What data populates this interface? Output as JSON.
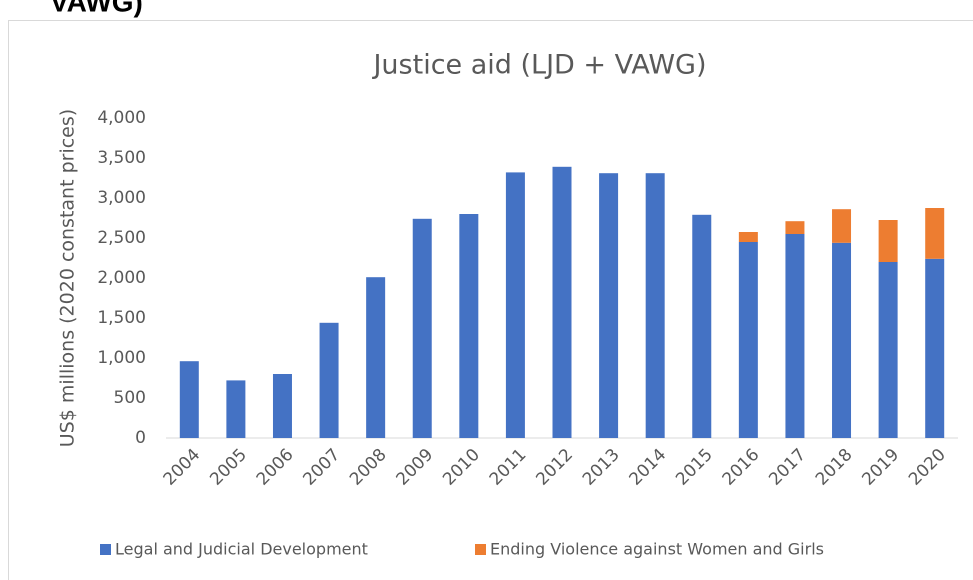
{
  "heading_fragment": "VAWG)",
  "chart_data": {
    "type": "stacked_bar",
    "title": "Justice aid (LJD + VAWG)",
    "y_label": "US$ millions (2020 constant prices)",
    "categories": [
      "2004",
      "2005",
      "2006",
      "2007",
      "2008",
      "2009",
      "2010",
      "2011",
      "2012",
      "2013",
      "2014",
      "2015",
      "2016",
      "2017",
      "2018",
      "2019",
      "2020"
    ],
    "series": [
      {
        "name": "Legal and Judicial Development",
        "color": "#4472c4",
        "values": [
          960,
          720,
          800,
          1440,
          2010,
          2740,
          2800,
          3320,
          3390,
          3310,
          3310,
          2790,
          2450,
          2550,
          2440,
          2200,
          2240
        ]
      },
      {
        "name": "Ending Violence against Women and Girls",
        "color": "#ed7d31",
        "values": [
          null,
          null,
          null,
          null,
          null,
          null,
          null,
          null,
          null,
          null,
          null,
          null,
          125,
          160,
          420,
          525,
          635
        ]
      }
    ],
    "ylim": [
      0,
      4000
    ],
    "yticks": [
      0,
      500,
      {
        "value": 1000,
        "label": "1,000"
      },
      {
        "value": 1500,
        "label": "1,500"
      },
      {
        "value": 2000,
        "label": "2,000"
      },
      {
        "value": 2500,
        "label": "2,500"
      },
      {
        "value": 3000,
        "label": "3,000"
      },
      {
        "value": 3500,
        "label": "3,500"
      },
      {
        "value": 4000,
        "label": "4,000"
      }
    ],
    "grid": false,
    "legend": "bottom"
  }
}
